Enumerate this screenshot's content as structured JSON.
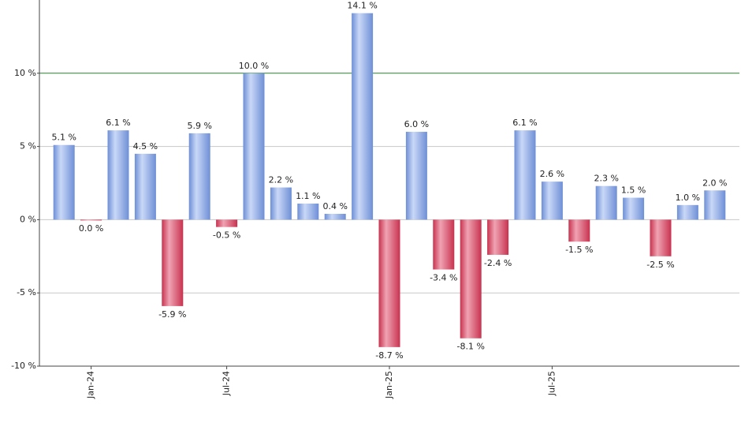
{
  "chart_data": {
    "type": "bar",
    "categories": [
      null,
      "Jan-24",
      null,
      null,
      null,
      null,
      "Jul-24",
      null,
      null,
      null,
      null,
      null,
      "Jan-25",
      null,
      null,
      null,
      null,
      null,
      "Jul-25",
      null,
      null,
      null,
      null,
      null,
      null
    ],
    "values": [
      5.1,
      -0.04,
      6.1,
      4.5,
      -5.9,
      5.9,
      -0.5,
      10.0,
      2.2,
      1.1,
      0.4,
      14.1,
      -8.7,
      6.0,
      -3.4,
      -8.1,
      -2.4,
      6.1,
      2.6,
      -1.5,
      2.3,
      1.5,
      -2.5,
      1.0,
      2.0
    ],
    "value_labels": [
      "5.1 %",
      "0.0 %",
      "6.1 %",
      "4.5 %",
      "-5.9 %",
      "5.9 %",
      "-0.5 %",
      "10.0 %",
      "2.2 %",
      "1.1 %",
      "0.4 %",
      "14.1 %",
      "-8.7 %",
      "6.0 %",
      "-3.4 %",
      "-8.1 %",
      "-2.4 %",
      "6.1 %",
      "2.6 %",
      "-1.5 %",
      "2.3 %",
      "1.5 %",
      "-2.5 %",
      "1.0 %",
      "2.0 %"
    ],
    "ylim": [
      -10,
      15
    ],
    "yticks": [
      {
        "value": -10,
        "label": "-10 %"
      },
      {
        "value": -5,
        "label": "-5 %"
      },
      {
        "value": 0,
        "label": "0 %"
      },
      {
        "value": 5,
        "label": "5 %"
      },
      {
        "value": 10,
        "label": "10 %"
      }
    ],
    "grid": true,
    "reference_line": 10,
    "reference_color": "#2e7d32",
    "positive_color": "#6e8fd6",
    "negative_color": "#c8324f"
  }
}
